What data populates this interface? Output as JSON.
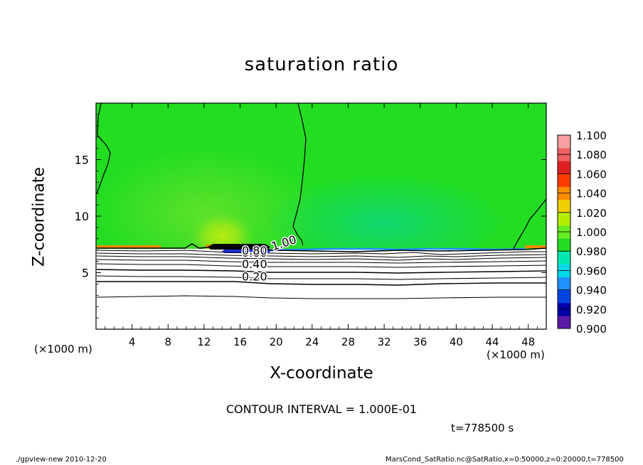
{
  "chart_data": {
    "type": "heatmap",
    "title": "saturation ratio",
    "xlabel": "X-coordinate",
    "ylabel": "Z-coordinate",
    "x_unit": "(×1000 m)",
    "xlim": [
      0,
      50
    ],
    "ylim": [
      0,
      20
    ],
    "x_ticks": [
      4,
      8,
      12,
      16,
      20,
      24,
      28,
      32,
      36,
      40,
      44,
      48
    ],
    "y_ticks": [
      5,
      10,
      15
    ],
    "contour_labels": [
      {
        "text": "1.00",
        "x": 21.0,
        "z": 7.3
      },
      {
        "text": "0.60",
        "x": 17.6,
        "z": 6.4
      },
      {
        "text": "0.80",
        "x": 17.6,
        "z": 6.6
      },
      {
        "text": "0.40",
        "x": 17.6,
        "z": 5.4
      },
      {
        "text": "0.20",
        "x": 17.6,
        "z": 4.3
      }
    ],
    "contour_interval": "CONTOUR INTERVAL = 1.000E-01",
    "time": "t=778500 s",
    "colorbar": {
      "min": 0.9,
      "max": 1.1,
      "tick_labels": [
        "1.100",
        "1.080",
        "1.060",
        "1.040",
        "1.020",
        "1.000",
        "0.980",
        "0.960",
        "0.940",
        "0.920",
        "0.900"
      ],
      "colors": [
        "#5a1aa6",
        "#0000a8",
        "#0044e6",
        "#1e90ff",
        "#00d8e8",
        "#00e8b0",
        "#22dd22",
        "#66ee22",
        "#b4ee00",
        "#f0d000",
        "#ff8c00",
        "#ff3c00",
        "#e02020",
        "#f06060",
        "#f8a0a0"
      ]
    },
    "field_colors": {
      "upper_main": "#22dd22",
      "upper_left_light": "#5ee22a",
      "upper_yellowish": "#a8ea18",
      "upper_right_teal": "#18dd60",
      "surface_orange": "#ff8c00",
      "pocket_blue": "#1f2fe0",
      "pocket_black": "#000000",
      "lower": "#ffffff"
    }
  },
  "footer": {
    "left": "./gpview-new   2010-12-20",
    "right": "MarsCond_SatRatio.nc@SatRatio,x=0:50000,z=0:20000,t=778500"
  }
}
